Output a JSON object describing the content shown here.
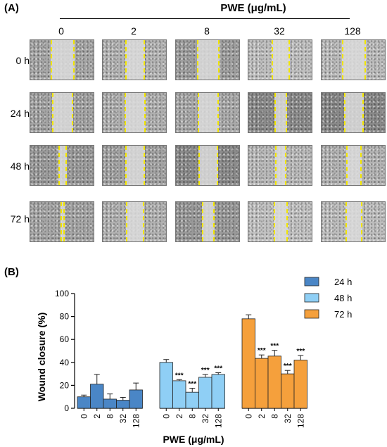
{
  "panel_a": {
    "label": "(A)",
    "header": "PWE (μg/mL)",
    "concentrations": [
      "0",
      "2",
      "8",
      "32",
      "128"
    ],
    "times": [
      "0 h",
      "24 h",
      "48 h",
      "72 h"
    ],
    "scratch_line_color": "#f2e600",
    "tile_shades": [
      [
        "#a8a8a8",
        "#b4b4b4",
        "#a0a0a0",
        "#c0c0c0",
        "#bcbcbc"
      ],
      [
        "#a4a4a4",
        "#b0b0b0",
        "#aaaaaa",
        "#8c8c8c",
        "#8a8a8a"
      ],
      [
        "#9c9c9c",
        "#a4a4a4",
        "#8c8c8c",
        "#bababa",
        "#b4b4b4"
      ],
      [
        "#a6a6a6",
        "#b2b2b2",
        "#9a9a9a",
        "#c2c2c2",
        "#bebebe"
      ]
    ],
    "wound_gap_fraction": [
      [
        0.36,
        0.31,
        0.35,
        0.29,
        0.36
      ],
      [
        0.33,
        0.33,
        0.33,
        0.2,
        0.3
      ],
      [
        0.14,
        0.31,
        0.3,
        0.17,
        0.23
      ],
      [
        0.06,
        0.28,
        0.2,
        0.21,
        0.26
      ]
    ]
  },
  "chart_data": {
    "type": "bar",
    "panel_label": "(B)",
    "xlabel": "PWE (μg/mL)",
    "ylabel": "Wound closure (%)",
    "ylim": [
      0,
      100
    ],
    "yticks": [
      0,
      20,
      40,
      60,
      80,
      100
    ],
    "categories": [
      "0",
      "2",
      "8",
      "32",
      "128"
    ],
    "legend_position": "top-right",
    "series": [
      {
        "name": "24 h",
        "color": "#4a86c6",
        "values": [
          10,
          21,
          8,
          7,
          16
        ],
        "errors": [
          1.5,
          8.5,
          4.5,
          2.5,
          6
        ],
        "significance": [
          "",
          "",
          "",
          "",
          ""
        ]
      },
      {
        "name": "48 h",
        "color": "#8fcff5",
        "values": [
          40,
          24,
          14,
          27,
          29.5
        ],
        "errors": [
          2.5,
          1,
          3.5,
          2.5,
          1.5
        ],
        "significance": [
          "",
          "***",
          "***",
          "***",
          "***"
        ]
      },
      {
        "name": "72 h",
        "color": "#f5a03c",
        "values": [
          78,
          43.5,
          45.5,
          30,
          42
        ],
        "errors": [
          3.5,
          3,
          5,
          3,
          4
        ],
        "significance": [
          "",
          "***",
          "***",
          "***",
          "***"
        ]
      }
    ]
  }
}
